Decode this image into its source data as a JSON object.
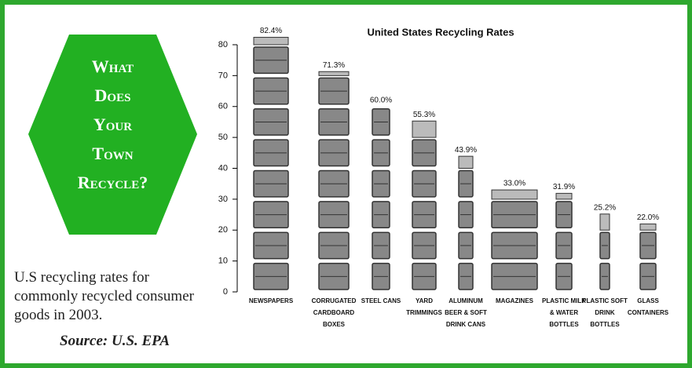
{
  "sidebar": {
    "heading": "What Does Your Town Recycle?",
    "caption": "U.S recycling rates for commonly recycled consumer goods in 2003.",
    "source": "Source: U.S. EPA"
  },
  "chart_data": {
    "type": "bar",
    "title": "United States Recycling Rates",
    "categories": [
      "NEWSPAPERS",
      "CORRUGATED CARDBOARD BOXES",
      "STEEL CANS",
      "YARD TRIMMINGS",
      "ALUMINUM BEER & SOFT DRINK CANS",
      "MAGAZINES",
      "PLASTIC MILK & WATER BOTTLES",
      "PLASTIC SOFT DRINK BOTTLES",
      "GLASS CONTAINERS"
    ],
    "values": [
      82.4,
      71.3,
      60.0,
      55.3,
      43.9,
      33.0,
      31.9,
      25.2,
      22.0
    ],
    "value_labels": [
      "82.4%",
      "71.3%",
      "60.0%",
      "55.3%",
      "43.9%",
      "33.0%",
      "31.9%",
      "25.2%",
      "22.0%"
    ],
    "color": "#333333",
    "ylim": [
      0,
      80
    ],
    "yticks": [
      0,
      10,
      20,
      30,
      40,
      50,
      60,
      70,
      80
    ]
  }
}
